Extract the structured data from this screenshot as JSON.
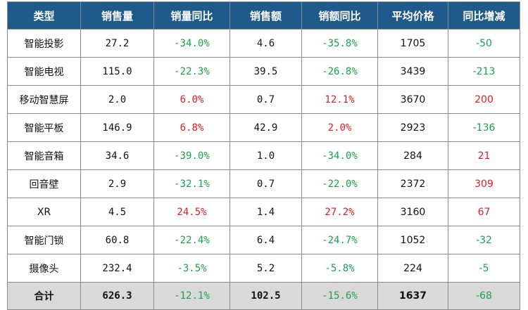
{
  "headers": [
    "类型",
    "销售量",
    "销量同比",
    "销售额",
    "销额同比",
    "平均价格",
    "同比增减"
  ],
  "rows": [
    {
      "type": "智能投影",
      "volume": "27.2",
      "volume_yoy": "-34.0%",
      "volume_yoy_dir": "neg",
      "sales": "4.6",
      "sales_yoy": "-35.8%",
      "sales_yoy_dir": "neg",
      "avg_price": "1705",
      "price_change": "-50",
      "price_change_dir": "neg"
    },
    {
      "type": "智能电视",
      "volume": "115.0",
      "volume_yoy": "-22.3%",
      "volume_yoy_dir": "neg",
      "sales": "39.5",
      "sales_yoy": "-26.8%",
      "sales_yoy_dir": "neg",
      "avg_price": "3439",
      "price_change": "-213",
      "price_change_dir": "neg"
    },
    {
      "type": "移动智慧屏",
      "volume": "2.0",
      "volume_yoy": "6.0%",
      "volume_yoy_dir": "pos",
      "sales": "0.7",
      "sales_yoy": "12.1%",
      "sales_yoy_dir": "pos",
      "avg_price": "3670",
      "price_change": "200",
      "price_change_dir": "pos"
    },
    {
      "type": "智能平板",
      "volume": "146.9",
      "volume_yoy": "6.8%",
      "volume_yoy_dir": "pos",
      "sales": "42.9",
      "sales_yoy": "2.0%",
      "sales_yoy_dir": "pos",
      "avg_price": "2923",
      "price_change": "-136",
      "price_change_dir": "neg"
    },
    {
      "type": "智能音箱",
      "volume": "34.6",
      "volume_yoy": "-39.0%",
      "volume_yoy_dir": "neg",
      "sales": "1.0",
      "sales_yoy": "-34.0%",
      "sales_yoy_dir": "neg",
      "avg_price": "284",
      "price_change": "21",
      "price_change_dir": "pos"
    },
    {
      "type": "回音壁",
      "volume": "2.9",
      "volume_yoy": "-32.1%",
      "volume_yoy_dir": "neg",
      "sales": "0.7",
      "sales_yoy": "-22.0%",
      "sales_yoy_dir": "neg",
      "avg_price": "2372",
      "price_change": "309",
      "price_change_dir": "pos"
    },
    {
      "type": "XR",
      "volume": "4.5",
      "volume_yoy": "24.5%",
      "volume_yoy_dir": "pos",
      "sales": "1.4",
      "sales_yoy": "27.2%",
      "sales_yoy_dir": "pos",
      "avg_price": "3160",
      "price_change": "67",
      "price_change_dir": "pos"
    },
    {
      "type": "智能门锁",
      "volume": "60.8",
      "volume_yoy": "-22.4%",
      "volume_yoy_dir": "neg",
      "sales": "6.4",
      "sales_yoy": "-24.7%",
      "sales_yoy_dir": "neg",
      "avg_price": "1052",
      "price_change": "-32",
      "price_change_dir": "neg"
    },
    {
      "type": "摄像头",
      "volume": "232.4",
      "volume_yoy": "-3.5%",
      "volume_yoy_dir": "neg",
      "sales": "5.2",
      "sales_yoy": "-5.8%",
      "sales_yoy_dir": "neg",
      "avg_price": "224",
      "price_change": "-5",
      "price_change_dir": "neg"
    }
  ],
  "total": {
    "type": "合计",
    "volume": "626.3",
    "volume_yoy": "-12.1%",
    "volume_yoy_dir": "neg",
    "sales": "102.5",
    "sales_yoy": "-15.6%",
    "sales_yoy_dir": "neg",
    "avg_price": "1637",
    "price_change": "-68",
    "price_change_dir": "neg"
  },
  "colors": {
    "header_bg": "#1f5a8c",
    "negative": "#1aa34a",
    "positive": "#e02020",
    "total_bg": "#d9d9d9"
  }
}
